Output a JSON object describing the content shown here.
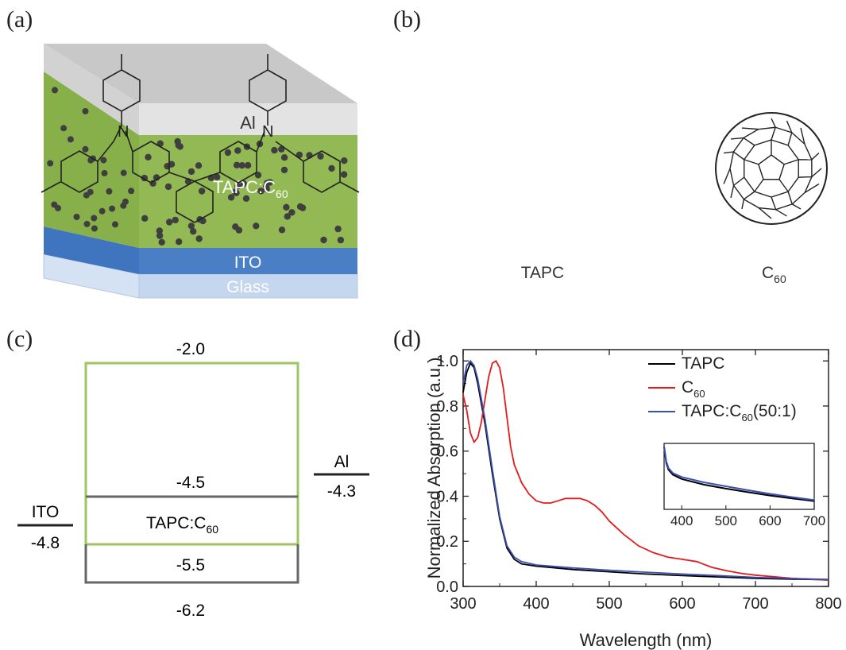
{
  "panels": {
    "a": {
      "label": "(a)",
      "layers": {
        "al": "Al",
        "active_main": "TAPC:C",
        "active_sub": "60",
        "ito": "ITO",
        "glass": "Glass"
      },
      "colors": {
        "al": "#d9d9d9",
        "active": "#92b954",
        "ito": "#4a7fc6",
        "glass": "#c5d7ee",
        "dot": "#444444"
      }
    },
    "b": {
      "label": "(b)",
      "tapc_label": "TAPC",
      "c60_main": "C",
      "c60_sub": "60",
      "atom_n": "N"
    },
    "c": {
      "label": "(c)",
      "tapc_lumo": "-2.0",
      "c60_lumo": "-4.5",
      "c60_homo": "-5.5",
      "tapc_homo": "-6.2",
      "al_name": "Al",
      "al_level": "-4.3",
      "ito_name": "ITO",
      "ito_level": "-4.8",
      "blend_main": "TAPC:C",
      "blend_sub": "60",
      "colors": {
        "tapc": "#9dc562",
        "c60": "#666666"
      }
    },
    "d": {
      "label": "(d)"
    }
  },
  "chart_data": {
    "type": "line",
    "xlabel": "Wavelength (nm)",
    "ylabel": "Normalized Absorption (a.u.)",
    "xlim": [
      300,
      800
    ],
    "ylim": [
      0,
      1.05
    ],
    "xticks": [
      "300",
      "400",
      "500",
      "600",
      "700",
      "800"
    ],
    "yticks": [
      "0.0",
      "0.2",
      "0.4",
      "0.6",
      "0.8",
      "1.0"
    ],
    "legend_position": "top-right",
    "legend": [
      {
        "main": "TAPC",
        "sub": "",
        "suffix": "",
        "color": "#000000"
      },
      {
        "main": "C",
        "sub": "60",
        "suffix": "",
        "color": "#e41a1c"
      },
      {
        "main": "TAPC:C",
        "sub": "60",
        "suffix": "(50:1)",
        "color": "#3a4fb0"
      }
    ],
    "series": [
      {
        "name": "TAPC",
        "color": "#000000",
        "points": [
          [
            300,
            0.86
          ],
          [
            305,
            0.95
          ],
          [
            310,
            0.99
          ],
          [
            315,
            0.97
          ],
          [
            320,
            0.9
          ],
          [
            330,
            0.72
          ],
          [
            340,
            0.5
          ],
          [
            350,
            0.3
          ],
          [
            360,
            0.17
          ],
          [
            370,
            0.12
          ],
          [
            380,
            0.1
          ],
          [
            400,
            0.09
          ],
          [
            450,
            0.075
          ],
          [
            500,
            0.065
          ],
          [
            550,
            0.055
          ],
          [
            600,
            0.048
          ],
          [
            650,
            0.042
          ],
          [
            700,
            0.036
          ],
          [
            750,
            0.032
          ],
          [
            800,
            0.03
          ]
        ]
      },
      {
        "name": "C60",
        "color": "#e41a1c",
        "points": [
          [
            300,
            0.85
          ],
          [
            305,
            0.78
          ],
          [
            310,
            0.68
          ],
          [
            315,
            0.64
          ],
          [
            320,
            0.66
          ],
          [
            325,
            0.73
          ],
          [
            330,
            0.83
          ],
          [
            335,
            0.93
          ],
          [
            340,
            0.99
          ],
          [
            345,
            1.0
          ],
          [
            350,
            0.97
          ],
          [
            355,
            0.88
          ],
          [
            360,
            0.75
          ],
          [
            365,
            0.62
          ],
          [
            370,
            0.54
          ],
          [
            380,
            0.46
          ],
          [
            390,
            0.41
          ],
          [
            400,
            0.38
          ],
          [
            410,
            0.37
          ],
          [
            420,
            0.37
          ],
          [
            430,
            0.38
          ],
          [
            440,
            0.39
          ],
          [
            450,
            0.39
          ],
          [
            460,
            0.39
          ],
          [
            470,
            0.38
          ],
          [
            480,
            0.36
          ],
          [
            490,
            0.33
          ],
          [
            500,
            0.29
          ],
          [
            520,
            0.23
          ],
          [
            540,
            0.18
          ],
          [
            560,
            0.15
          ],
          [
            580,
            0.13
          ],
          [
            600,
            0.12
          ],
          [
            620,
            0.11
          ],
          [
            640,
            0.085
          ],
          [
            660,
            0.07
          ],
          [
            680,
            0.058
          ],
          [
            700,
            0.05
          ],
          [
            750,
            0.036
          ],
          [
            800,
            0.028
          ]
        ]
      },
      {
        "name": "TAPC:C60(50:1)",
        "color": "#3a4fb0",
        "points": [
          [
            300,
            0.9
          ],
          [
            305,
            0.98
          ],
          [
            310,
            1.0
          ],
          [
            315,
            0.98
          ],
          [
            320,
            0.92
          ],
          [
            330,
            0.74
          ],
          [
            340,
            0.52
          ],
          [
            350,
            0.31
          ],
          [
            360,
            0.18
          ],
          [
            370,
            0.13
          ],
          [
            380,
            0.11
          ],
          [
            400,
            0.095
          ],
          [
            450,
            0.082
          ],
          [
            500,
            0.072
          ],
          [
            550,
            0.063
          ],
          [
            600,
            0.055
          ],
          [
            650,
            0.048
          ],
          [
            700,
            0.04
          ],
          [
            750,
            0.035
          ],
          [
            800,
            0.031
          ]
        ]
      }
    ],
    "inset": {
      "xlim": [
        360,
        700
      ],
      "ylim": [
        0.0,
        0.2
      ],
      "xticks": [
        "400",
        "500",
        "600",
        "700"
      ],
      "series": [
        {
          "name": "TAPC",
          "color": "#000000",
          "points": [
            [
              360,
              0.19
            ],
            [
              365,
              0.14
            ],
            [
              370,
              0.12
            ],
            [
              380,
              0.105
            ],
            [
              400,
              0.092
            ],
            [
              450,
              0.075
            ],
            [
              500,
              0.063
            ],
            [
              550,
              0.052
            ],
            [
              600,
              0.042
            ],
            [
              650,
              0.033
            ],
            [
              700,
              0.025
            ]
          ]
        },
        {
          "name": "TAPC:C60(50:1)",
          "color": "#3a4fb0",
          "points": [
            [
              360,
              0.19
            ],
            [
              365,
              0.145
            ],
            [
              370,
              0.125
            ],
            [
              380,
              0.11
            ],
            [
              400,
              0.098
            ],
            [
              450,
              0.082
            ],
            [
              500,
              0.07
            ],
            [
              550,
              0.058
            ],
            [
              600,
              0.047
            ],
            [
              650,
              0.037
            ],
            [
              700,
              0.028
            ]
          ]
        }
      ]
    }
  }
}
